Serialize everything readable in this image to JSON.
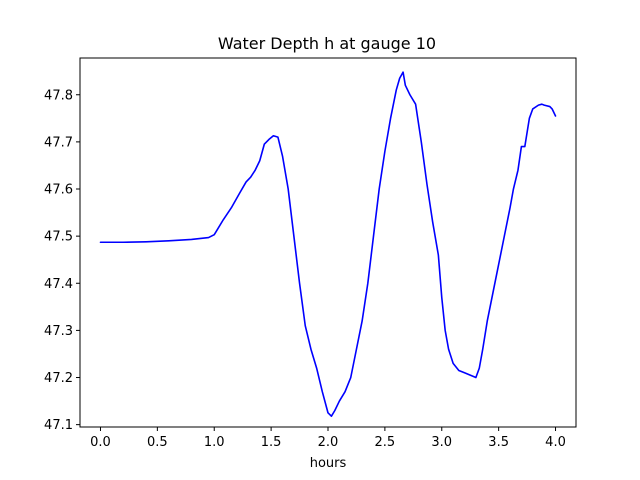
{
  "chart_data": {
    "type": "line",
    "title": "Water Depth h at gauge 10",
    "xlabel": "hours",
    "ylabel": "",
    "xlim": [
      -0.18,
      4.18
    ],
    "ylim": [
      47.095,
      47.878
    ],
    "xticks": [
      0.0,
      0.5,
      1.0,
      1.5,
      2.0,
      2.5,
      3.0,
      3.5,
      4.0
    ],
    "xtick_labels": [
      "0.0",
      "0.5",
      "1.0",
      "1.5",
      "2.0",
      "2.5",
      "3.0",
      "3.5",
      "4.0"
    ],
    "yticks": [
      47.1,
      47.2,
      47.3,
      47.4,
      47.5,
      47.6,
      47.7,
      47.8
    ],
    "ytick_labels": [
      "47.1",
      "47.2",
      "47.3",
      "47.4",
      "47.5",
      "47.6",
      "47.7",
      "47.8"
    ],
    "grid": false,
    "series": [
      {
        "color": "#0000ff",
        "x": [
          0.0,
          0.2,
          0.4,
          0.6,
          0.8,
          0.95,
          1.0,
          1.03,
          1.08,
          1.15,
          1.22,
          1.28,
          1.32,
          1.36,
          1.4,
          1.44,
          1.48,
          1.52,
          1.56,
          1.6,
          1.65,
          1.7,
          1.75,
          1.8,
          1.85,
          1.9,
          1.95,
          2.0,
          2.03,
          2.06,
          2.1,
          2.15,
          2.2,
          2.25,
          2.3,
          2.35,
          2.4,
          2.45,
          2.5,
          2.55,
          2.6,
          2.63,
          2.66,
          2.68,
          2.72,
          2.77,
          2.82,
          2.87,
          2.92,
          2.97,
          3.0,
          3.03,
          3.06,
          3.1,
          3.15,
          3.2,
          3.25,
          3.3,
          3.33,
          3.36,
          3.4,
          3.45,
          3.5,
          3.55,
          3.6,
          3.63,
          3.67,
          3.7,
          3.73,
          3.77,
          3.8,
          3.85,
          3.88,
          3.9,
          3.95,
          3.97,
          4.0
        ],
        "y": [
          47.487,
          47.487,
          47.488,
          47.49,
          47.493,
          47.497,
          47.503,
          47.515,
          47.535,
          47.56,
          47.59,
          47.615,
          47.625,
          47.64,
          47.66,
          47.695,
          47.705,
          47.713,
          47.71,
          47.67,
          47.6,
          47.5,
          47.4,
          47.31,
          47.26,
          47.22,
          47.17,
          47.125,
          47.118,
          47.13,
          47.15,
          47.17,
          47.2,
          47.26,
          47.32,
          47.4,
          47.5,
          47.6,
          47.68,
          47.75,
          47.81,
          47.835,
          47.848,
          47.82,
          47.8,
          47.78,
          47.7,
          47.61,
          47.53,
          47.46,
          47.37,
          47.3,
          47.26,
          47.23,
          47.215,
          47.21,
          47.205,
          47.2,
          47.22,
          47.26,
          47.32,
          47.38,
          47.44,
          47.5,
          47.56,
          47.6,
          47.64,
          47.69,
          47.69,
          47.75,
          47.77,
          47.778,
          47.78,
          47.778,
          47.775,
          47.77,
          47.755
        ]
      }
    ]
  }
}
